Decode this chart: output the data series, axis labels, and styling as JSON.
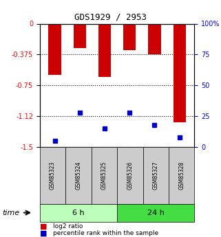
{
  "title": "GDS1929 / 2953",
  "samples": [
    "GSM85323",
    "GSM85324",
    "GSM85325",
    "GSM85326",
    "GSM85327",
    "GSM85328"
  ],
  "log2_values": [
    -0.62,
    -0.3,
    -0.65,
    -0.32,
    -0.37,
    -1.2
  ],
  "percentile_values": [
    5,
    28,
    15,
    28,
    18,
    8
  ],
  "bar_color": "#cc0000",
  "percentile_color": "#0000cc",
  "ylim_left": [
    -1.5,
    0
  ],
  "ylim_right": [
    0,
    100
  ],
  "yticks_left": [
    0,
    -0.375,
    -0.75,
    -1.125,
    -1.5
  ],
  "yticks_right": [
    0,
    25,
    50,
    75,
    100
  ],
  "groups": [
    {
      "label": "6 h",
      "indices": [
        0,
        1,
        2
      ],
      "color": "#aaffaa"
    },
    {
      "label": "24 h",
      "indices": [
        3,
        4,
        5
      ],
      "color": "#44cc44"
    }
  ],
  "time_label": "time",
  "legend_log2": "log2 ratio",
  "legend_percentile": "percentile rank within the sample",
  "bar_width": 0.5
}
